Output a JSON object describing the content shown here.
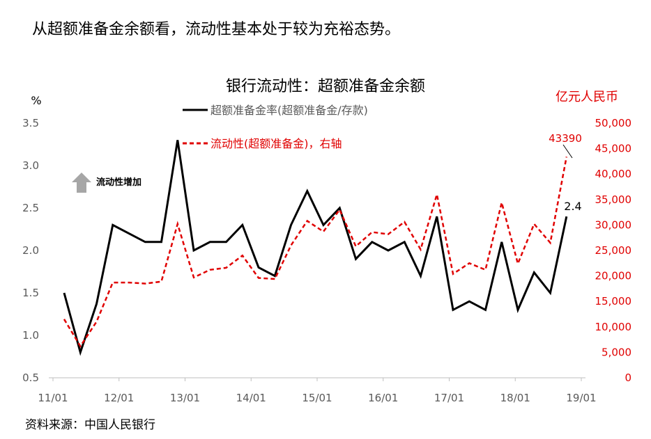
{
  "page": {
    "headline": "从超额准备金余额看，流动性基本处于较为充裕态势。",
    "source": "资料来源：中国人民银行"
  },
  "colors": {
    "primary": "#000000",
    "secondary": "#e00000",
    "arrow": "#a6a6a6",
    "axis": "#595959"
  },
  "chart_data": {
    "type": "line",
    "title": "银行流动性：超额准备金余额",
    "x_tick_labels": [
      "11/01",
      "12/01",
      "13/01",
      "14/01",
      "15/01",
      "16/01",
      "17/01",
      "18/01",
      "19/01"
    ],
    "y_left": {
      "unit_label": "%",
      "range": [
        0.5,
        3.5
      ],
      "ticks": [
        "0.5",
        "1.0",
        "1.5",
        "2.0",
        "2.5",
        "3.0",
        "3.5"
      ]
    },
    "y_right": {
      "unit_label": "亿元人民币",
      "range": [
        0,
        50000
      ],
      "ticks": [
        "0",
        "5,000",
        "10,000",
        "15,000",
        "20,000",
        "25,000",
        "30,000",
        "35,000",
        "40,000",
        "45,000",
        "50,000"
      ]
    },
    "x": [
      "2011-03",
      "2011-06",
      "2011-09",
      "2011-12",
      "2012-03",
      "2012-06",
      "2012-09",
      "2012-12",
      "2013-03",
      "2013-06",
      "2013-09",
      "2013-12",
      "2014-03",
      "2014-06",
      "2014-09",
      "2014-12",
      "2015-03",
      "2015-06",
      "2015-09",
      "2015-12",
      "2016-03",
      "2016-06",
      "2016-09",
      "2016-12",
      "2017-03",
      "2017-06",
      "2017-09",
      "2017-12",
      "2018-03",
      "2018-06",
      "2018-09",
      "2018-12"
    ],
    "series": [
      {
        "name": "超额准备金率(超额准备金/存款)",
        "axis": "left",
        "style": "solid",
        "color": "#000000",
        "values": [
          1.5,
          0.8,
          1.37,
          2.3,
          2.2,
          2.1,
          2.1,
          3.3,
          2.0,
          2.1,
          2.1,
          2.3,
          1.8,
          1.7,
          2.3,
          2.7,
          2.3,
          2.5,
          1.9,
          2.1,
          2.0,
          2.1,
          1.7,
          2.4,
          1.3,
          1.4,
          1.3,
          2.1,
          1.3,
          1.74,
          1.5,
          2.4
        ]
      },
      {
        "name": "流动性(超额准备金)，右轴",
        "axis": "right",
        "style": "dashed",
        "color": "#e00000",
        "values": [
          11500,
          6200,
          11000,
          18700,
          18700,
          18500,
          18900,
          30200,
          19700,
          21200,
          21600,
          24000,
          19600,
          19400,
          26000,
          30800,
          28700,
          33000,
          25800,
          28600,
          28200,
          30600,
          25200,
          36000,
          20400,
          22500,
          21200,
          34400,
          22400,
          30200,
          26500,
          43390
        ]
      }
    ],
    "annotations": {
      "arrow_note": "流动性增加",
      "last_black_label": "2.4",
      "last_red_label": "43390"
    },
    "grid": false,
    "legend_position": "top-center"
  }
}
